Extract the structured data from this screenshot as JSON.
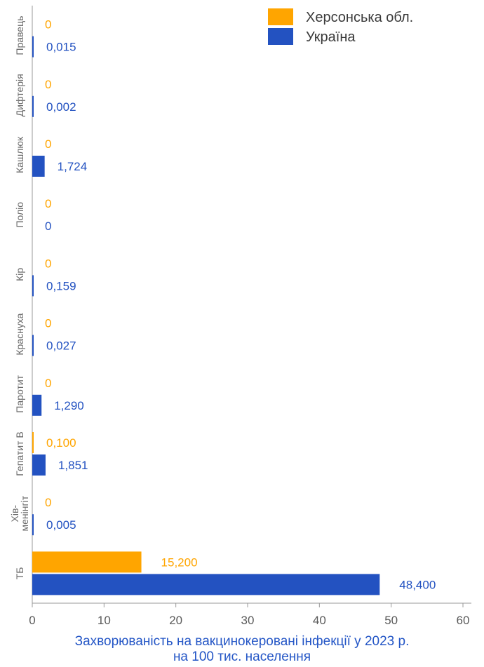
{
  "chart_data": {
    "type": "bar",
    "orientation": "horizontal",
    "categories": [
      "Правець",
      "Дифтерія",
      "Кашлюк",
      "Поліо",
      "Кір",
      "Краснуха",
      "Паротит",
      "Гепатит В",
      "Хів-менінгіт",
      "ТБ"
    ],
    "category_label_lines": [
      [
        "Правець"
      ],
      [
        "Дифтерія"
      ],
      [
        "Кашлюк"
      ],
      [
        "Поліо"
      ],
      [
        "Кір"
      ],
      [
        "Краснуха"
      ],
      [
        "Паротит"
      ],
      [
        "Гепатит В"
      ],
      [
        "Хів-",
        "менінгіт"
      ],
      [
        "ТБ"
      ]
    ],
    "series": [
      {
        "name": "Херсонська обл.",
        "color": "#ffa500",
        "values": [
          0,
          0,
          0,
          0,
          0,
          0,
          0,
          0.1,
          0,
          15.2
        ],
        "labels": [
          "0",
          "0",
          "0",
          "0",
          "0",
          "0",
          "0",
          "0,100",
          "0",
          "15,200"
        ]
      },
      {
        "name": "Україна",
        "color": "#2352c1",
        "values": [
          0.015,
          0.002,
          1.724,
          0,
          0.159,
          0.027,
          1.29,
          1.851,
          0.005,
          48.4
        ],
        "labels": [
          "0,015",
          "0,002",
          "1,724",
          "0",
          "0,159",
          "0,027",
          "1,290",
          "1,851",
          "0,005",
          "48,400"
        ]
      }
    ],
    "xlim": [
      0,
      60
    ],
    "xticks": [
      0,
      10,
      20,
      30,
      40,
      50,
      60
    ],
    "xtick_labels": [
      "0",
      "10",
      "20",
      "30",
      "40",
      "50",
      "60"
    ],
    "xlabel_lines": [
      "Захворюваність на вакцинокеровані інфекції у 2023 р.",
      "на 100 тис. населення"
    ],
    "legend_position": "top-right",
    "grid": false
  }
}
